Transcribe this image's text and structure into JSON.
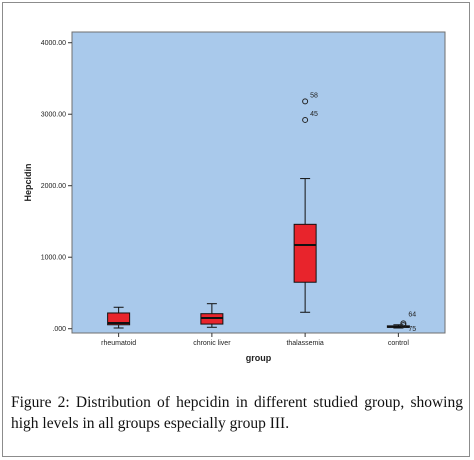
{
  "figure": {
    "caption": "Figure 2: Distribution of hepcidin in different studied group, showing high levels in all groups especially group III."
  },
  "chart_data": {
    "type": "boxplot",
    "xlabel": "group",
    "ylabel": "Hepcidin",
    "ylim": [
      -60,
      4150
    ],
    "yticks": [
      {
        "value": 0,
        "label": ".000"
      },
      {
        "value": 1000,
        "label": "1000.00"
      },
      {
        "value": 2000,
        "label": "2000.00"
      },
      {
        "value": 3000,
        "label": "3000.00"
      },
      {
        "value": 4000,
        "label": "4000.00"
      }
    ],
    "categories": [
      "rheumatoid",
      "chronic liver",
      "thalassemia",
      "control"
    ],
    "boxes": [
      {
        "category": "rheumatoid",
        "min": 10,
        "q1": 55,
        "median": 80,
        "q3": 220,
        "max": 300,
        "outliers": []
      },
      {
        "category": "chronic liver",
        "min": 20,
        "q1": 65,
        "median": 150,
        "q3": 210,
        "max": 350,
        "outliers": []
      },
      {
        "category": "thalassemia",
        "min": 230,
        "q1": 650,
        "median": 1170,
        "q3": 1460,
        "max": 2100,
        "outliers": [
          {
            "value": 3180,
            "label": "58"
          },
          {
            "value": 2920,
            "label": "45"
          }
        ]
      },
      {
        "category": "control",
        "min": 10,
        "q1": 20,
        "median": 28,
        "q3": 40,
        "max": 55,
        "outliers": [
          {
            "value": 75,
            "label": "64"
          },
          {
            "value": 50,
            "label": "75"
          }
        ]
      }
    ],
    "colors": {
      "plot_bg": "#a9c9eb",
      "box_fill": "#e8242c",
      "line": "#111111"
    },
    "grid": false,
    "legend": "none"
  }
}
